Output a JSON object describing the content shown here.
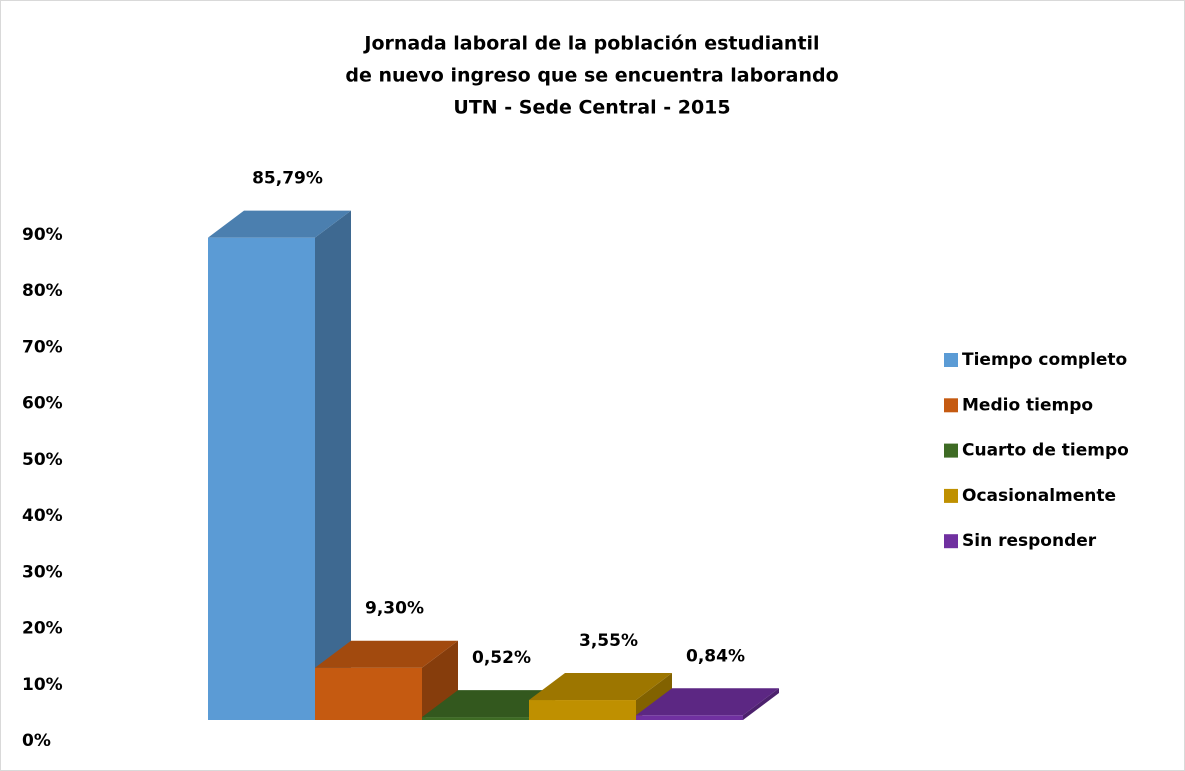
{
  "chart_data": {
    "type": "bar3d",
    "title": [
      "Jornada laboral de la población estudiantil",
      "de nuevo ingreso que se encuentra laborando",
      "UTN - Sede Central - 2015"
    ],
    "categories": [
      "Tiempo completo",
      "Medio tiempo",
      "Cuarto de tiempo",
      "Ocasionalmente",
      "Sin responder"
    ],
    "values": [
      85.79,
      9.3,
      0.52,
      3.55,
      0.84
    ],
    "value_labels": [
      "85,79%",
      "9,30%",
      "0,52%",
      "3,55%",
      "0,84%"
    ],
    "colors": [
      "#5b9bd5",
      "#c55a11",
      "#3e6b24",
      "#bf9000",
      "#7030a0"
    ],
    "ylim": [
      0,
      90
    ],
    "yticks": [
      {
        "value": 0,
        "label": "0%"
      },
      {
        "value": 10,
        "label": "10%"
      },
      {
        "value": 20,
        "label": "20%"
      },
      {
        "value": 30,
        "label": "30%"
      },
      {
        "value": 40,
        "label": "40%"
      },
      {
        "value": 50,
        "label": "50%"
      },
      {
        "value": 60,
        "label": "60%"
      },
      {
        "value": 70,
        "label": "70%"
      },
      {
        "value": 80,
        "label": "80%"
      },
      {
        "value": 90,
        "label": "90%"
      }
    ],
    "legend": "right"
  }
}
